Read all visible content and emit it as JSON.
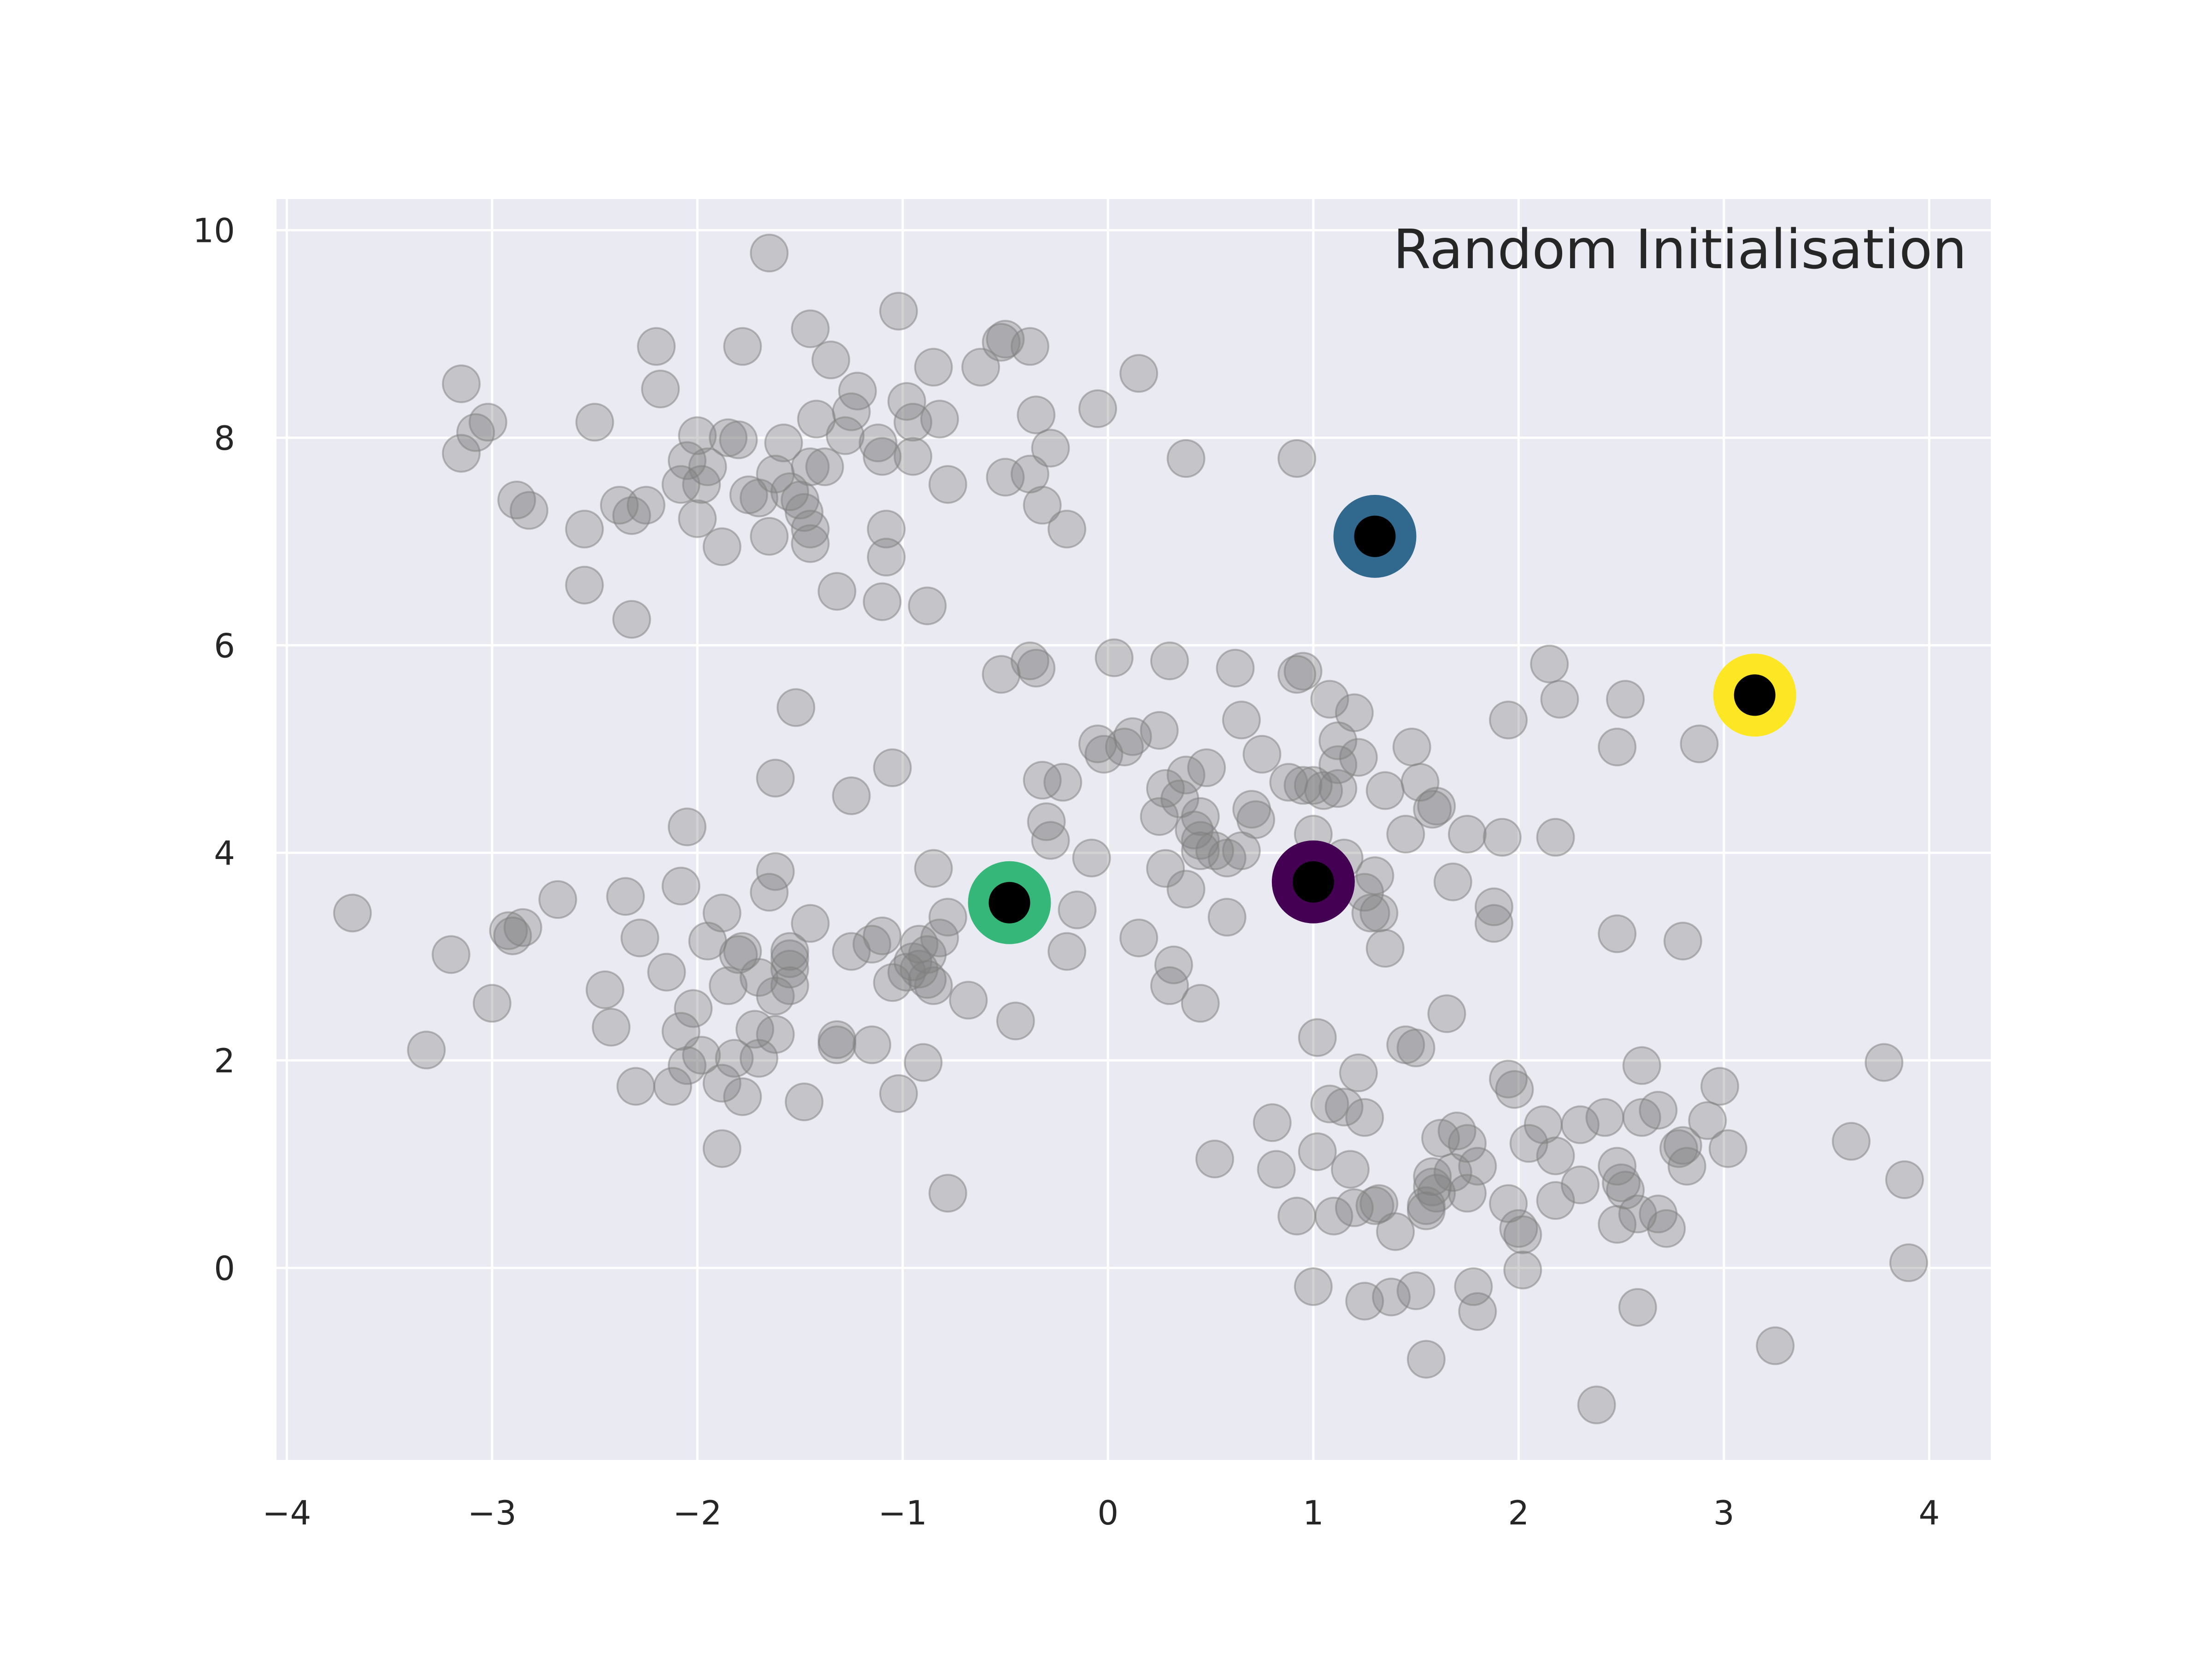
{
  "chart_data": {
    "type": "scatter",
    "title": "Random Initialisation",
    "xlabel": "",
    "ylabel": "",
    "xlim": [
      -4.05,
      4.3
    ],
    "ylim": [
      -1.85,
      10.3
    ],
    "x_ticks": [
      -4,
      -3,
      -2,
      -1,
      0,
      1,
      2,
      3,
      4
    ],
    "x_tick_labels": [
      "−4",
      "−3",
      "−2",
      "−1",
      "0",
      "1",
      "2",
      "3",
      "4"
    ],
    "y_ticks": [
      0,
      2,
      4,
      6,
      8,
      10
    ],
    "y_tick_labels": [
      "0",
      "2",
      "4",
      "6",
      "8",
      "10"
    ],
    "grid": true,
    "title_position": "top-right",
    "colors": {
      "background": "#eaeaf2",
      "grid": "#ffffff",
      "points": "#7f7f7f",
      "centroid_center": "#000000"
    },
    "series": [
      {
        "points": [
          [
            -3.15,
            8.52
          ],
          [
            -3.08,
            8.05
          ],
          [
            -3.15,
            7.85
          ],
          [
            -3.02,
            8.15
          ],
          [
            -2.88,
            7.4
          ],
          [
            -2.82,
            7.3
          ],
          [
            -2.55,
            7.12
          ],
          [
            -2.5,
            8.15
          ],
          [
            -2.38,
            7.35
          ],
          [
            -2.32,
            7.25
          ],
          [
            -2.25,
            7.35
          ],
          [
            -2.32,
            6.25
          ],
          [
            -2.55,
            6.58
          ],
          [
            -2.2,
            8.88
          ],
          [
            -2.18,
            8.47
          ],
          [
            -2.05,
            7.78
          ],
          [
            -2.08,
            7.55
          ],
          [
            -2.0,
            8.02
          ],
          [
            -1.98,
            7.55
          ],
          [
            -1.95,
            7.72
          ],
          [
            -2.0,
            7.22
          ],
          [
            -1.88,
            6.95
          ],
          [
            -1.78,
            8.88
          ],
          [
            -1.8,
            7.98
          ],
          [
            -1.75,
            7.45
          ],
          [
            -1.85,
            8.0
          ],
          [
            -1.7,
            7.42
          ],
          [
            -1.65,
            7.05
          ],
          [
            -1.65,
            9.78
          ],
          [
            -1.62,
            7.65
          ],
          [
            -1.58,
            7.95
          ],
          [
            -1.55,
            7.48
          ],
          [
            -1.5,
            7.4
          ],
          [
            -1.48,
            7.28
          ],
          [
            -1.45,
            7.12
          ],
          [
            -1.45,
            6.98
          ],
          [
            -1.45,
            7.72
          ],
          [
            -1.42,
            8.18
          ],
          [
            -1.45,
            9.05
          ],
          [
            -1.38,
            7.72
          ],
          [
            -1.35,
            8.75
          ],
          [
            -1.32,
            6.52
          ],
          [
            -1.28,
            8.02
          ],
          [
            -1.25,
            8.25
          ],
          [
            -1.22,
            8.45
          ],
          [
            -1.12,
            7.95
          ],
          [
            -1.1,
            7.82
          ],
          [
            -1.08,
            6.85
          ],
          [
            -1.08,
            7.12
          ],
          [
            -1.1,
            6.42
          ],
          [
            -1.02,
            9.22
          ],
          [
            -0.98,
            8.35
          ],
          [
            -0.95,
            7.82
          ],
          [
            -0.95,
            8.15
          ],
          [
            -0.88,
            6.38
          ],
          [
            -0.85,
            8.68
          ],
          [
            -0.82,
            8.18
          ],
          [
            -0.78,
            7.55
          ],
          [
            -0.62,
            8.68
          ],
          [
            -0.52,
            8.92
          ],
          [
            -0.5,
            8.95
          ],
          [
            -0.5,
            7.62
          ],
          [
            -0.38,
            8.88
          ],
          [
            -0.38,
            7.65
          ],
          [
            -0.35,
            8.22
          ],
          [
            -0.32,
            7.35
          ],
          [
            -0.28,
            7.9
          ],
          [
            -0.2,
            7.12
          ],
          [
            -0.05,
            8.28
          ],
          [
            0.15,
            8.62
          ],
          [
            0.38,
            7.8
          ],
          [
            0.92,
            7.8
          ],
          [
            -3.68,
            3.42
          ],
          [
            -3.32,
            2.1
          ],
          [
            -3.2,
            3.02
          ],
          [
            -3.0,
            2.55
          ],
          [
            -2.92,
            3.25
          ],
          [
            -2.9,
            3.2
          ],
          [
            -2.85,
            3.28
          ],
          [
            -2.68,
            3.55
          ],
          [
            -2.45,
            2.68
          ],
          [
            -2.42,
            2.32
          ],
          [
            -2.35,
            3.58
          ],
          [
            -2.3,
            1.75
          ],
          [
            -2.28,
            3.18
          ],
          [
            -2.15,
            2.85
          ],
          [
            -2.12,
            1.75
          ],
          [
            -2.08,
            2.28
          ],
          [
            -2.08,
            3.68
          ],
          [
            -2.05,
            4.25
          ],
          [
            -2.05,
            1.95
          ],
          [
            -2.02,
            2.5
          ],
          [
            -1.98,
            2.05
          ],
          [
            -1.95,
            3.15
          ],
          [
            -1.88,
            3.42
          ],
          [
            -1.88,
            1.78
          ],
          [
            -1.88,
            1.15
          ],
          [
            -1.85,
            2.72
          ],
          [
            -1.82,
            2.02
          ],
          [
            -1.8,
            3.02
          ],
          [
            -1.78,
            1.65
          ],
          [
            -1.78,
            3.05
          ],
          [
            -1.72,
            2.3
          ],
          [
            -1.7,
            2.8
          ],
          [
            -1.7,
            2.02
          ],
          [
            -1.65,
            3.62
          ],
          [
            -1.62,
            2.25
          ],
          [
            -1.62,
            2.62
          ],
          [
            -1.62,
            3.82
          ],
          [
            -1.62,
            4.72
          ],
          [
            -1.55,
            3.05
          ],
          [
            -1.55,
            2.98
          ],
          [
            -1.55,
            2.72
          ],
          [
            -1.55,
            2.88
          ],
          [
            -1.52,
            5.4
          ],
          [
            -1.45,
            3.32
          ],
          [
            -1.48,
            1.6
          ],
          [
            -1.32,
            2.15
          ],
          [
            -1.32,
            2.2
          ],
          [
            -1.25,
            4.55
          ],
          [
            -1.25,
            3.05
          ],
          [
            -1.15,
            3.12
          ],
          [
            -1.15,
            2.15
          ],
          [
            -1.1,
            3.2
          ],
          [
            -1.05,
            4.82
          ],
          [
            -1.05,
            2.75
          ],
          [
            -1.02,
            1.68
          ],
          [
            -0.98,
            2.85
          ],
          [
            -0.95,
            2.95
          ],
          [
            -0.92,
            3.12
          ],
          [
            -0.92,
            2.88
          ],
          [
            -0.9,
            1.98
          ],
          [
            -0.88,
            3.02
          ],
          [
            -0.88,
            2.78
          ],
          [
            -0.85,
            3.85
          ],
          [
            -0.85,
            2.72
          ],
          [
            -0.82,
            3.18
          ],
          [
            -0.78,
            3.38
          ],
          [
            -0.78,
            0.72
          ],
          [
            -0.68,
            2.58
          ],
          [
            -0.52,
            5.72
          ],
          [
            -0.45,
            2.38
          ],
          [
            -0.42,
            3.62
          ],
          [
            -0.38,
            5.85
          ],
          [
            -0.35,
            5.78
          ],
          [
            -0.32,
            4.7
          ],
          [
            -0.3,
            4.3
          ],
          [
            -0.28,
            4.12
          ],
          [
            -0.22,
            4.68
          ],
          [
            -0.2,
            3.05
          ],
          [
            -0.15,
            3.45
          ],
          [
            -0.08,
            3.95
          ],
          [
            -0.05,
            5.05
          ],
          [
            -0.02,
            4.95
          ],
          [
            0.03,
            5.88
          ],
          [
            0.08,
            5.02
          ],
          [
            0.12,
            5.12
          ],
          [
            0.15,
            3.18
          ],
          [
            0.25,
            5.18
          ],
          [
            0.25,
            4.35
          ],
          [
            0.28,
            4.62
          ],
          [
            0.28,
            3.85
          ],
          [
            0.3,
            5.85
          ],
          [
            0.3,
            2.72
          ],
          [
            0.32,
            2.92
          ],
          [
            0.35,
            4.52
          ],
          [
            0.38,
            4.75
          ],
          [
            0.38,
            3.65
          ],
          [
            0.42,
            4.22
          ],
          [
            0.45,
            4.12
          ],
          [
            0.45,
            4.02
          ],
          [
            0.45,
            4.35
          ],
          [
            0.45,
            2.55
          ],
          [
            0.48,
            4.82
          ],
          [
            0.52,
            4.02
          ],
          [
            0.58,
            3.95
          ],
          [
            0.58,
            3.38
          ],
          [
            0.62,
            5.78
          ],
          [
            0.65,
            5.28
          ],
          [
            0.65,
            4.02
          ],
          [
            0.7,
            4.42
          ],
          [
            0.72,
            4.32
          ],
          [
            0.75,
            4.95
          ],
          [
            0.88,
            4.68
          ],
          [
            0.92,
            5.72
          ],
          [
            0.95,
            5.75
          ],
          [
            0.95,
            4.65
          ],
          [
            1.0,
            4.65
          ],
          [
            1.0,
            4.18
          ],
          [
            1.05,
            4.6
          ],
          [
            1.08,
            5.48
          ],
          [
            1.12,
            4.62
          ],
          [
            1.12,
            5.08
          ],
          [
            1.12,
            4.85
          ],
          [
            1.15,
            3.95
          ],
          [
            1.2,
            5.35
          ],
          [
            1.22,
            4.92
          ],
          [
            1.25,
            3.62
          ],
          [
            1.28,
            3.42
          ],
          [
            1.3,
            3.78
          ],
          [
            1.32,
            3.42
          ],
          [
            1.35,
            4.6
          ],
          [
            1.35,
            3.08
          ],
          [
            1.45,
            4.18
          ],
          [
            1.48,
            5.02
          ],
          [
            1.52,
            4.68
          ],
          [
            1.58,
            4.42
          ],
          [
            1.6,
            4.45
          ],
          [
            1.68,
            3.72
          ],
          [
            1.75,
            4.18
          ],
          [
            1.88,
            3.48
          ],
          [
            1.88,
            3.32
          ],
          [
            1.92,
            4.15
          ],
          [
            1.95,
            5.28
          ],
          [
            2.15,
            5.82
          ],
          [
            2.18,
            4.15
          ],
          [
            2.2,
            5.48
          ],
          [
            2.48,
            5.02
          ],
          [
            2.52,
            5.48
          ],
          [
            2.48,
            3.22
          ],
          [
            2.88,
            5.05
          ],
          [
            2.8,
            3.15
          ],
          [
            0.52,
            1.05
          ],
          [
            0.8,
            1.4
          ],
          [
            0.82,
            0.95
          ],
          [
            0.92,
            0.5
          ],
          [
            1.0,
            -0.18
          ],
          [
            1.02,
            2.22
          ],
          [
            1.02,
            1.12
          ],
          [
            1.08,
            1.58
          ],
          [
            1.1,
            0.5
          ],
          [
            1.15,
            1.55
          ],
          [
            1.18,
            0.95
          ],
          [
            1.2,
            0.58
          ],
          [
            1.22,
            1.88
          ],
          [
            1.25,
            1.45
          ],
          [
            1.25,
            -0.32
          ],
          [
            1.3,
            0.6
          ],
          [
            1.32,
            0.62
          ],
          [
            1.38,
            -0.28
          ],
          [
            1.4,
            0.35
          ],
          [
            1.45,
            2.15
          ],
          [
            1.5,
            2.12
          ],
          [
            1.5,
            -0.22
          ],
          [
            1.55,
            0.55
          ],
          [
            1.55,
            -0.88
          ],
          [
            1.55,
            0.6
          ],
          [
            1.58,
            0.88
          ],
          [
            1.58,
            0.78
          ],
          [
            1.6,
            0.72
          ],
          [
            1.62,
            1.25
          ],
          [
            1.65,
            2.45
          ],
          [
            1.68,
            0.92
          ],
          [
            1.7,
            1.32
          ],
          [
            1.75,
            1.2
          ],
          [
            1.75,
            0.72
          ],
          [
            1.78,
            -0.18
          ],
          [
            1.8,
            0.98
          ],
          [
            1.8,
            -0.42
          ],
          [
            1.95,
            1.82
          ],
          [
            1.95,
            0.62
          ],
          [
            1.98,
            1.72
          ],
          [
            2.0,
            0.38
          ],
          [
            2.02,
            0.32
          ],
          [
            2.02,
            -0.02
          ],
          [
            2.05,
            1.2
          ],
          [
            2.12,
            1.38
          ],
          [
            2.18,
            1.08
          ],
          [
            2.18,
            0.65
          ],
          [
            2.3,
            1.38
          ],
          [
            2.3,
            0.8
          ],
          [
            2.38,
            -1.32
          ],
          [
            2.42,
            1.45
          ],
          [
            2.48,
            0.42
          ],
          [
            2.48,
            0.98
          ],
          [
            2.5,
            0.82
          ],
          [
            2.52,
            0.75
          ],
          [
            2.58,
            -0.38
          ],
          [
            2.58,
            0.52
          ],
          [
            2.6,
            1.95
          ],
          [
            2.6,
            1.45
          ],
          [
            2.68,
            1.52
          ],
          [
            2.68,
            0.52
          ],
          [
            2.72,
            0.38
          ],
          [
            2.78,
            1.15
          ],
          [
            2.8,
            1.18
          ],
          [
            2.82,
            0.98
          ],
          [
            2.92,
            1.42
          ],
          [
            2.98,
            1.75
          ],
          [
            3.02,
            1.15
          ],
          [
            3.25,
            -0.75
          ],
          [
            3.62,
            1.22
          ],
          [
            3.78,
            1.98
          ],
          [
            3.88,
            0.85
          ],
          [
            3.9,
            0.05
          ]
        ]
      }
    ],
    "centroids": [
      {
        "x": 1.0,
        "y": 3.72,
        "color": "#440154"
      },
      {
        "x": 1.3,
        "y": 7.05,
        "color": "#31688e"
      },
      {
        "x": -0.48,
        "y": 3.52,
        "color": "#35b779"
      },
      {
        "x": 3.15,
        "y": 5.52,
        "color": "#fde725"
      }
    ]
  }
}
